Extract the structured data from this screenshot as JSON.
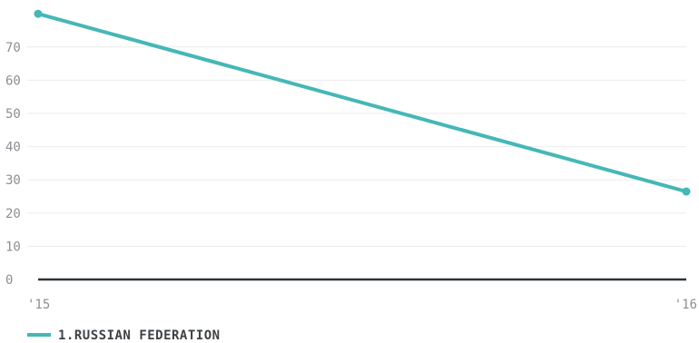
{
  "chart_data": {
    "type": "line",
    "x": [
      "'15",
      "'16"
    ],
    "yticks": [
      0,
      10,
      20,
      30,
      40,
      50,
      60,
      70
    ],
    "ylim": [
      0,
      80
    ],
    "grid": true,
    "series": [
      {
        "name": "1.RUSSIAN FEDERATION",
        "values": [
          80,
          26.5
        ],
        "color": "#45b7b7"
      }
    ],
    "legend_position": "bottom-left",
    "colors": {
      "gridline": "#ebebeb",
      "baseline": "#2e3338",
      "tick_text": "#8a8f93",
      "legend_text": "#3d4246"
    }
  }
}
